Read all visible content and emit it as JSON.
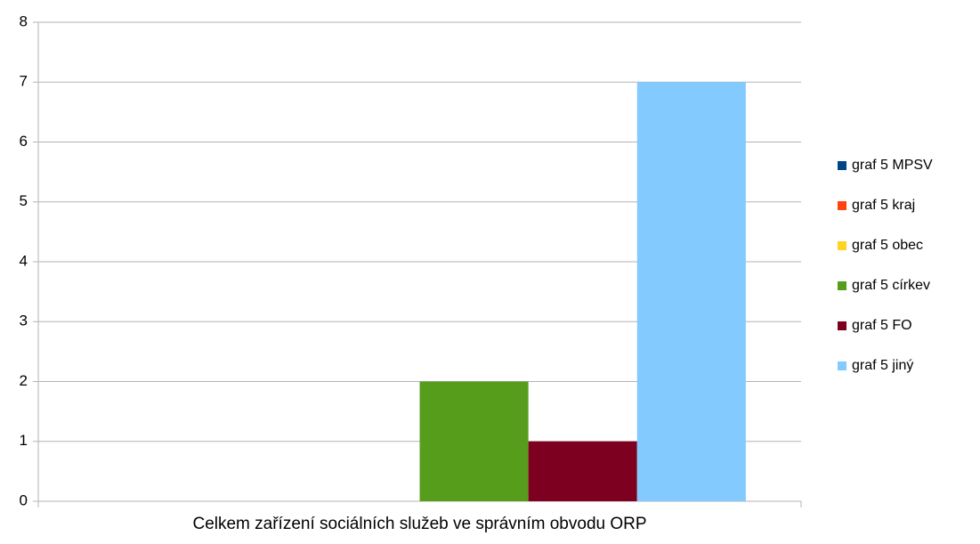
{
  "chart_data": {
    "type": "bar",
    "categories": [
      "Celkem zařízení sociálních služeb ve správním obvodu ORP"
    ],
    "series": [
      {
        "name": "graf 5 MPSV",
        "color": "#004586",
        "values": [
          0
        ]
      },
      {
        "name": "graf 5 kraj",
        "color": "#ff420e",
        "values": [
          0
        ]
      },
      {
        "name": "graf 5 obec",
        "color": "#ffd320",
        "values": [
          0
        ]
      },
      {
        "name": "graf 5 církev",
        "color": "#579d1c",
        "values": [
          2
        ]
      },
      {
        "name": "graf 5 FO",
        "color": "#7e0021",
        "values": [
          1
        ]
      },
      {
        "name": "graf 5 jiný",
        "color": "#83caff",
        "values": [
          7
        ]
      }
    ],
    "ylim": [
      0,
      8
    ],
    "yticks": [
      0,
      1,
      2,
      3,
      4,
      5,
      6,
      7,
      8
    ],
    "grid": true,
    "legend": "right"
  }
}
